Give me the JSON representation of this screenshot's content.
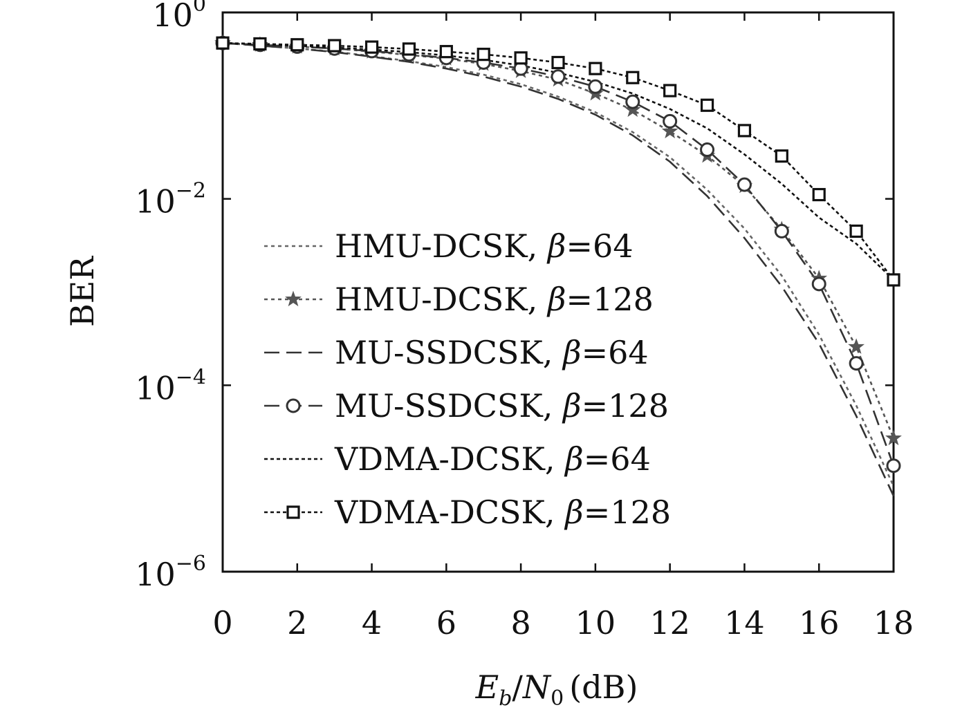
{
  "chart_data": {
    "type": "line",
    "title": "",
    "xlabel": {
      "main": "E",
      "sub": "b",
      "slash": "/",
      "main2": "N",
      "sub2": "0",
      "unit": "(dB)"
    },
    "ylabel": "BER",
    "xlim": [
      0,
      18
    ],
    "ylim": [
      1e-06,
      1
    ],
    "yscale": "log",
    "grid": false,
    "legend_position": "center-left",
    "x_ticks": [
      "0",
      "2",
      "4",
      "6",
      "8",
      "10",
      "12",
      "14",
      "16",
      "18"
    ],
    "y_ticks": [
      {
        "value": 1,
        "base": "10",
        "exp": "0"
      },
      {
        "value": 0.01,
        "base": "10",
        "exp": "−2"
      },
      {
        "value": 0.0001,
        "base": "10",
        "exp": "−4"
      },
      {
        "value": 1e-06,
        "base": "10",
        "exp": "−6"
      }
    ],
    "x": [
      0,
      1,
      2,
      3,
      4,
      5,
      6,
      7,
      8,
      9,
      10,
      11,
      12,
      13,
      14,
      15,
      16,
      17,
      18
    ],
    "series": [
      {
        "name": "HMU-DCSK, β=64",
        "name_prefix": "HMU-DCSK, ",
        "beta": "β",
        "name_suffix": "=64",
        "color": "#666666",
        "dash": "5,5",
        "marker": "none",
        "values": [
          0.47,
          0.44,
          0.41,
          0.38,
          0.34,
          0.3,
          0.26,
          0.215,
          0.17,
          0.125,
          0.085,
          0.052,
          0.028,
          0.0125,
          0.0048,
          0.0015,
          0.00035,
          6.07e-05,
          8.3e-06
        ]
      },
      {
        "name": "HMU-DCSK, β=128",
        "name_prefix": "HMU-DCSK, ",
        "beta": "β",
        "name_suffix": "=128",
        "color": "#555555",
        "dash": "5,5",
        "marker": "star",
        "values": [
          0.47,
          0.45,
          0.43,
          0.41,
          0.38,
          0.35,
          0.32,
          0.28,
          0.235,
          0.19,
          0.135,
          0.09,
          0.053,
          0.029,
          0.0137,
          0.0047,
          0.0014,
          0.000258,
          2.7e-05
        ]
      },
      {
        "name": "MU-SSDCSK, β=64",
        "name_prefix": "MU-SSDCSK, ",
        "beta": "β",
        "name_suffix": "=64",
        "color": "#333333",
        "dash": "22,10",
        "marker": "none",
        "values": [
          0.47,
          0.44,
          0.41,
          0.375,
          0.335,
          0.295,
          0.25,
          0.205,
          0.16,
          0.118,
          0.08,
          0.048,
          0.025,
          0.0107,
          0.0038,
          0.00115,
          0.00028,
          4.69e-05,
          6.5e-06
        ]
      },
      {
        "name": "MU-SSDCSK, β=128",
        "name_prefix": "MU-SSDCSK, ",
        "beta": "β",
        "name_suffix": "=128",
        "color": "#333333",
        "dash": "22,10",
        "marker": "circle",
        "values": [
          0.47,
          0.45,
          0.43,
          0.41,
          0.385,
          0.355,
          0.325,
          0.29,
          0.25,
          0.205,
          0.16,
          0.11,
          0.068,
          0.0337,
          0.0142,
          0.0045,
          0.00122,
          0.000172,
          1.37e-05
        ]
      },
      {
        "name": "VDMA-DCSK, β=64",
        "name_prefix": "VDMA-DCSK, ",
        "beta": "β",
        "name_suffix": "=64",
        "color": "#111111",
        "dash": "5,4",
        "marker": "none",
        "values": [
          0.47,
          0.455,
          0.44,
          0.42,
          0.4,
          0.375,
          0.345,
          0.31,
          0.27,
          0.225,
          0.18,
          0.135,
          0.092,
          0.057,
          0.03,
          0.0145,
          0.0063,
          0.0033,
          0.00135
        ]
      },
      {
        "name": "VDMA-DCSK, β=128",
        "name_prefix": "VDMA-DCSK, ",
        "beta": "β",
        "name_suffix": "=128",
        "color": "#111111",
        "dash": "5,4",
        "marker": "square",
        "values": [
          0.47,
          0.46,
          0.45,
          0.44,
          0.425,
          0.405,
          0.38,
          0.355,
          0.325,
          0.29,
          0.25,
          0.2,
          0.145,
          0.101,
          0.054,
          0.0288,
          0.0111,
          0.0045,
          0.00135
        ]
      }
    ]
  }
}
